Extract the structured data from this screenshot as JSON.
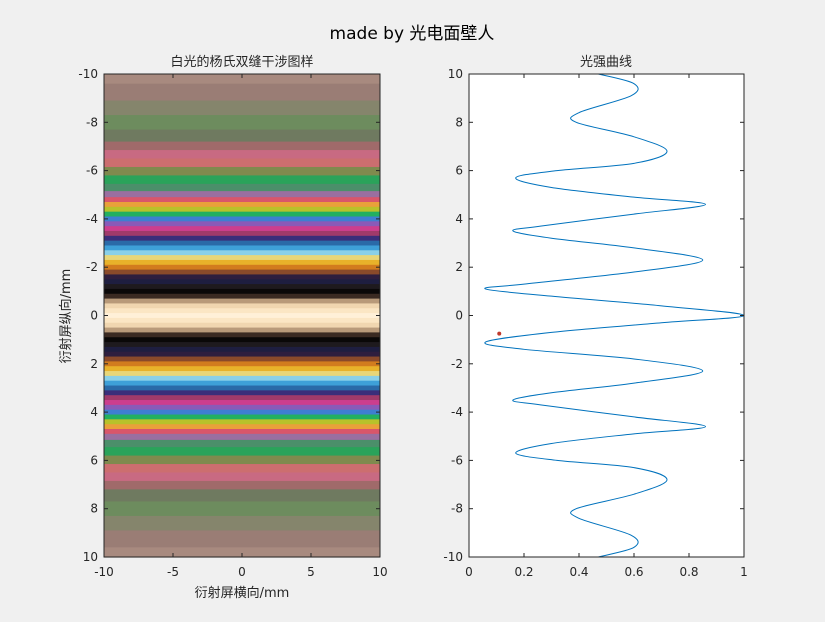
{
  "figure": {
    "suptitle": "made by 光电面壁人",
    "background_color": "#f0f0f0"
  },
  "chart_data": [
    {
      "type": "heatmap",
      "title": "白光的杨氏双缝干涉图样",
      "xlabel": "衍射屏横向/mm",
      "ylabel": "衍射屏纵向/mm",
      "xlim": [
        -10,
        10
      ],
      "ylim": [
        -10,
        10
      ],
      "y_reversed": true,
      "xticks": [
        -10,
        -5,
        0,
        5,
        10
      ],
      "yticks": [
        -10,
        -8,
        -6,
        -4,
        -2,
        0,
        2,
        4,
        6,
        8,
        10
      ],
      "fringe_bands": [
        {
          "y": -10.0,
          "color": "#a88a7f"
        },
        {
          "y": -9.2,
          "color": "#9a7d75"
        },
        {
          "y": -8.6,
          "color": "#85856c"
        },
        {
          "y": -8.0,
          "color": "#6d8c5e"
        },
        {
          "y": -7.4,
          "color": "#6f7a60"
        },
        {
          "y": -7.0,
          "color": "#a06a6a"
        },
        {
          "y": -6.7,
          "color": "#c86a82"
        },
        {
          "y": -6.3,
          "color": "#cc6e6f"
        },
        {
          "y": -6.0,
          "color": "#7f8a4e"
        },
        {
          "y": -5.6,
          "color": "#2aa35a"
        },
        {
          "y": -5.3,
          "color": "#4b8f6a"
        },
        {
          "y": -5.0,
          "color": "#9a6fa0"
        },
        {
          "y": -4.8,
          "color": "#d9566a"
        },
        {
          "y": -4.6,
          "color": "#e9a13a"
        },
        {
          "y": -4.4,
          "color": "#b8c22a"
        },
        {
          "y": -4.2,
          "color": "#22b060"
        },
        {
          "y": -4.0,
          "color": "#3e7fd0"
        },
        {
          "y": -3.8,
          "color": "#8a5ab8"
        },
        {
          "y": -3.6,
          "color": "#cc3e8e"
        },
        {
          "y": -3.4,
          "color": "#a03a6a"
        },
        {
          "y": -3.2,
          "color": "#3a2e7a"
        },
        {
          "y": -3.0,
          "color": "#2a6aa8"
        },
        {
          "y": -2.8,
          "color": "#3ea0d8"
        },
        {
          "y": -2.6,
          "color": "#8ad0e8"
        },
        {
          "y": -2.4,
          "color": "#e8d678"
        },
        {
          "y": -2.2,
          "color": "#e8b22a"
        },
        {
          "y": -2.0,
          "color": "#d27c1e"
        },
        {
          "y": -1.8,
          "color": "#8a4a2a"
        },
        {
          "y": -1.6,
          "color": "#2e1e3e"
        },
        {
          "y": -1.4,
          "color": "#1e1e40"
        },
        {
          "y": -1.2,
          "color": "#1e1a1e"
        },
        {
          "y": -1.0,
          "color": "#0a0808"
        },
        {
          "y": -0.8,
          "color": "#3a2a22"
        },
        {
          "y": -0.6,
          "color": "#b89a7a"
        },
        {
          "y": -0.4,
          "color": "#f0d6b0"
        },
        {
          "y": -0.2,
          "color": "#fbe6c4"
        },
        {
          "y": 0.0,
          "color": "#fff0d8"
        },
        {
          "y": 0.2,
          "color": "#fbe6c4"
        },
        {
          "y": 0.4,
          "color": "#f0d6b0"
        },
        {
          "y": 0.6,
          "color": "#b89a7a"
        },
        {
          "y": 0.8,
          "color": "#3a2a22"
        },
        {
          "y": 1.0,
          "color": "#0a0808"
        },
        {
          "y": 1.2,
          "color": "#1e1a1e"
        },
        {
          "y": 1.4,
          "color": "#1e1e40"
        },
        {
          "y": 1.6,
          "color": "#2e1e3e"
        },
        {
          "y": 1.8,
          "color": "#8a4a2a"
        },
        {
          "y": 2.0,
          "color": "#d27c1e"
        },
        {
          "y": 2.2,
          "color": "#e8b22a"
        },
        {
          "y": 2.4,
          "color": "#e8d678"
        },
        {
          "y": 2.6,
          "color": "#8ad0e8"
        },
        {
          "y": 2.8,
          "color": "#3ea0d8"
        },
        {
          "y": 3.0,
          "color": "#2a6aa8"
        },
        {
          "y": 3.2,
          "color": "#3a2e7a"
        },
        {
          "y": 3.4,
          "color": "#a03a6a"
        },
        {
          "y": 3.6,
          "color": "#cc3e8e"
        },
        {
          "y": 3.8,
          "color": "#8a5ab8"
        },
        {
          "y": 4.0,
          "color": "#3e7fd0"
        },
        {
          "y": 4.2,
          "color": "#22b060"
        },
        {
          "y": 4.4,
          "color": "#b8c22a"
        },
        {
          "y": 4.6,
          "color": "#e9a13a"
        },
        {
          "y": 4.8,
          "color": "#d9566a"
        },
        {
          "y": 5.0,
          "color": "#9a6fa0"
        },
        {
          "y": 5.3,
          "color": "#4b8f6a"
        },
        {
          "y": 5.6,
          "color": "#2aa35a"
        },
        {
          "y": 6.0,
          "color": "#7f8a4e"
        },
        {
          "y": 6.3,
          "color": "#cc6e6f"
        },
        {
          "y": 6.7,
          "color": "#c86a82"
        },
        {
          "y": 7.0,
          "color": "#a06a6a"
        },
        {
          "y": 7.4,
          "color": "#6f7a60"
        },
        {
          "y": 8.0,
          "color": "#6d8c5e"
        },
        {
          "y": 8.6,
          "color": "#85856c"
        },
        {
          "y": 9.2,
          "color": "#9a7d75"
        },
        {
          "y": 10.0,
          "color": "#a88a7f"
        }
      ]
    },
    {
      "type": "line",
      "title": "光强曲线",
      "xlim": [
        0,
        1
      ],
      "ylim": [
        -10,
        10
      ],
      "xticks": [
        0,
        0.2,
        0.4,
        0.6,
        0.8,
        1
      ],
      "yticks": [
        -10,
        -8,
        -6,
        -4,
        -2,
        0,
        2,
        4,
        6,
        8,
        10
      ],
      "line_color": "#0072bd",
      "series": [
        {
          "x": [
            0.47,
            0.6,
            0.59,
            0.4,
            0.39,
            0.6,
            0.72,
            0.6,
            0.32,
            0.17,
            0.3,
            0.6,
            0.86,
            0.6,
            0.26,
            0.16,
            0.3,
            0.6,
            0.85,
            0.6,
            0.2,
            0.06,
            0.3,
            0.7,
            1.0,
            0.7,
            0.3,
            0.06,
            0.2,
            0.6,
            0.85,
            0.6,
            0.3,
            0.16,
            0.26,
            0.6,
            0.86,
            0.6,
            0.3,
            0.17,
            0.32,
            0.6,
            0.72,
            0.6,
            0.39,
            0.4,
            0.59,
            0.6,
            0.47
          ],
          "y": [
            10.0,
            9.6,
            9.1,
            8.4,
            8.0,
            7.4,
            6.8,
            6.3,
            6.0,
            5.7,
            5.3,
            4.9,
            4.6,
            4.2,
            3.7,
            3.5,
            3.2,
            2.8,
            2.3,
            1.8,
            1.3,
            1.1,
            0.8,
            0.4,
            0.0,
            -0.3,
            -0.7,
            -1.1,
            -1.4,
            -1.8,
            -2.3,
            -2.8,
            -3.2,
            -3.5,
            -3.7,
            -4.2,
            -4.6,
            -4.9,
            -5.3,
            -5.7,
            -6.0,
            -6.3,
            -6.8,
            -7.4,
            -8.0,
            -8.4,
            -9.1,
            -9.6,
            -10.0
          ]
        }
      ],
      "marker": {
        "x": 0.11,
        "y": -0.75,
        "color": "#c0392b"
      }
    }
  ]
}
